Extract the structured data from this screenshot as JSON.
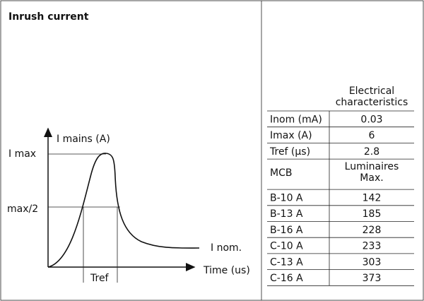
{
  "title": "Inrush current",
  "diagram": {
    "y_axis_label": "I mains (A)",
    "x_axis_label": "Time (us)",
    "imax_label": "I max",
    "half_label": "max/2",
    "inom_label": "I nom.",
    "tref_label": "Tref"
  },
  "table": {
    "header": "Electrical characteristics",
    "rows": [
      [
        "Inom (mA)",
        "0.03"
      ],
      [
        "Imax (A)",
        "6"
      ],
      [
        "Tref (µs)",
        "2.8"
      ]
    ],
    "mcb_header": [
      "MCB",
      "Luminaires Max."
    ],
    "mcb_rows": [
      [
        "B-10 A",
        "142"
      ],
      [
        "B-13 A",
        "185"
      ],
      [
        "B-16 A",
        "228"
      ],
      [
        "C-10 A",
        "233"
      ],
      [
        "C-13 A",
        "303"
      ],
      [
        "C-16 A",
        "373"
      ]
    ]
  }
}
